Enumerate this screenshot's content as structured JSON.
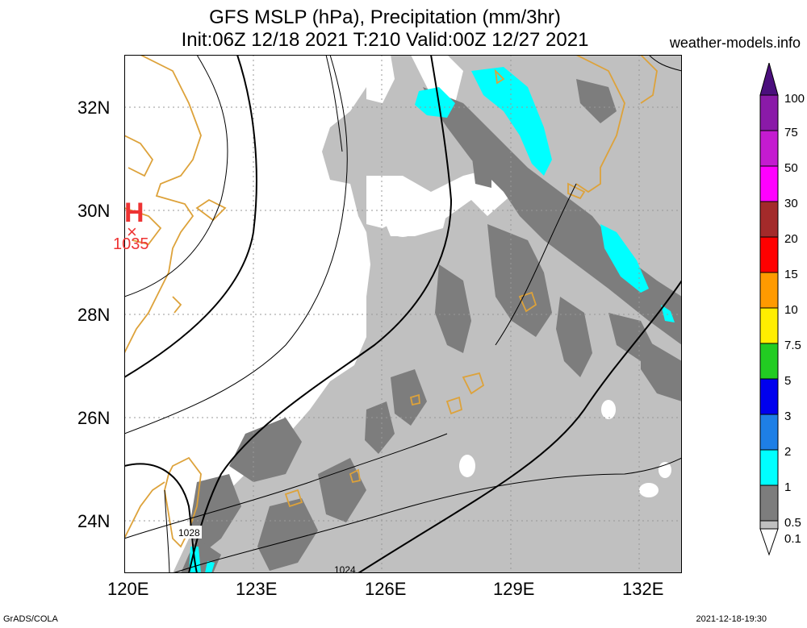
{
  "title": {
    "line1": "GFS MSLP (hPa), Precipitation (mm/3hr)",
    "line2": "Init:06Z 12/18 2021 T:210 Valid:00Z 12/27 2021"
  },
  "source": "weather-models.info",
  "footer": {
    "software": "GrADS/COLA",
    "timestamp": "2021-12-18-19:30"
  },
  "map": {
    "lat_labels": [
      "32N",
      "30N",
      "28N",
      "26N",
      "24N"
    ],
    "lon_labels": [
      "120E",
      "123E",
      "126E",
      "129E",
      "132E"
    ],
    "extent": {
      "lon": [
        120,
        133
      ],
      "lat": [
        23,
        33
      ]
    },
    "high_pressure": {
      "symbol": "H",
      "marker": "×",
      "value": "1035",
      "color": "#ee3333"
    },
    "isobar_labels": [
      "1028",
      "1024"
    ],
    "coastline_color": "#dda23a",
    "grid": "dotted"
  },
  "colorbar": {
    "labels": [
      "100",
      "75",
      "50",
      "30",
      "20",
      "15",
      "10",
      "7.5",
      "5",
      "3",
      "2",
      "1",
      "0.5",
      "0.1"
    ],
    "colors": [
      "#4b0f7d",
      "#8a1aa8",
      "#c41bd0",
      "#ff00ff",
      "#a32a2a",
      "#ff0000",
      "#ff9a00",
      "#ffee00",
      "#22cc22",
      "#0000ee",
      "#1e7fe6",
      "#00ffff",
      "#7d7d7d",
      "#c0c0c0",
      "#ffffff"
    ]
  }
}
